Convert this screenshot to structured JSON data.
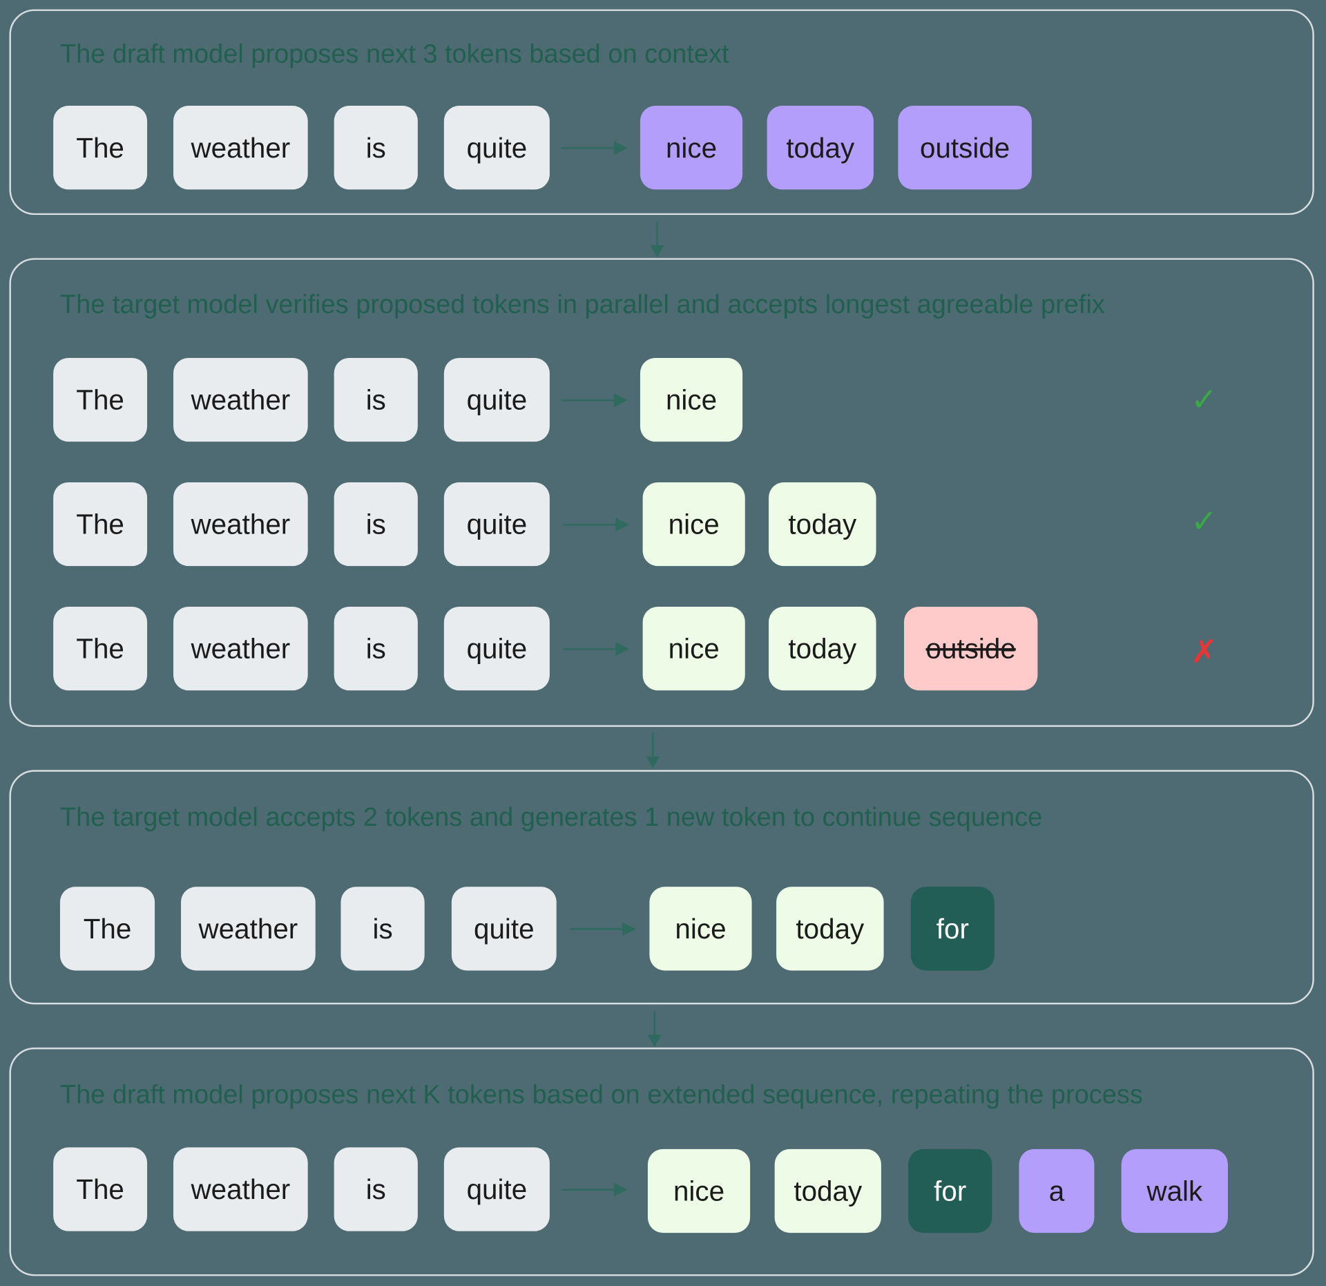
{
  "colors": {
    "background": "#4e6a73",
    "context": "#e9ecef",
    "draft": "#b49efc",
    "accepted": "#eefbe6",
    "rejected": "#ffcaca",
    "generated": "#225e55",
    "check": "#3aa845",
    "cross": "#e23838",
    "title": "#21604f"
  },
  "panels": [
    {
      "title": "The draft model proposes next 3 tokens based on context",
      "rows": [
        {
          "tokens": [
            {
              "text": "The",
              "kind": "context"
            },
            {
              "text": "weather",
              "kind": "context"
            },
            {
              "text": "is",
              "kind": "context"
            },
            {
              "text": "quite",
              "kind": "context"
            },
            {
              "text": "nice",
              "kind": "draft"
            },
            {
              "text": "today",
              "kind": "draft"
            },
            {
              "text": "outside",
              "kind": "draft"
            }
          ],
          "mark": null
        }
      ]
    },
    {
      "title": "The target model verifies proposed tokens in parallel and accepts longest agreeable prefix",
      "rows": [
        {
          "tokens": [
            {
              "text": "The",
              "kind": "context"
            },
            {
              "text": "weather",
              "kind": "context"
            },
            {
              "text": "is",
              "kind": "context"
            },
            {
              "text": "quite",
              "kind": "context"
            },
            {
              "text": "nice",
              "kind": "accepted"
            }
          ],
          "mark": "✓"
        },
        {
          "tokens": [
            {
              "text": "The",
              "kind": "context"
            },
            {
              "text": "weather",
              "kind": "context"
            },
            {
              "text": "is",
              "kind": "context"
            },
            {
              "text": "quite",
              "kind": "context"
            },
            {
              "text": "nice",
              "kind": "accepted"
            },
            {
              "text": "today",
              "kind": "accepted"
            }
          ],
          "mark": "✓"
        },
        {
          "tokens": [
            {
              "text": "The",
              "kind": "context"
            },
            {
              "text": "weather",
              "kind": "context"
            },
            {
              "text": "is",
              "kind": "context"
            },
            {
              "text": "quite",
              "kind": "context"
            },
            {
              "text": "nice",
              "kind": "accepted"
            },
            {
              "text": "today",
              "kind": "accepted"
            },
            {
              "text": "outside",
              "kind": "rejected"
            }
          ],
          "mark": "✗"
        }
      ]
    },
    {
      "title": "The target model accepts 2 tokens and generates 1 new token to continue sequence",
      "rows": [
        {
          "tokens": [
            {
              "text": "The",
              "kind": "context"
            },
            {
              "text": "weather",
              "kind": "context"
            },
            {
              "text": "is",
              "kind": "context"
            },
            {
              "text": "quite",
              "kind": "context"
            },
            {
              "text": "nice",
              "kind": "accepted"
            },
            {
              "text": "today",
              "kind": "accepted"
            },
            {
              "text": "for",
              "kind": "generated"
            }
          ],
          "mark": null
        }
      ]
    },
    {
      "title": "The draft model proposes next K tokens based on extended sequence, repeating the process",
      "rows": [
        {
          "tokens": [
            {
              "text": "The",
              "kind": "context"
            },
            {
              "text": "weather",
              "kind": "context"
            },
            {
              "text": "is",
              "kind": "context"
            },
            {
              "text": "quite",
              "kind": "context"
            },
            {
              "text": "nice",
              "kind": "accepted"
            },
            {
              "text": "today",
              "kind": "accepted"
            },
            {
              "text": "for",
              "kind": "generated"
            },
            {
              "text": "a",
              "kind": "draft"
            },
            {
              "text": "walk",
              "kind": "draft"
            }
          ],
          "mark": null
        }
      ]
    }
  ]
}
